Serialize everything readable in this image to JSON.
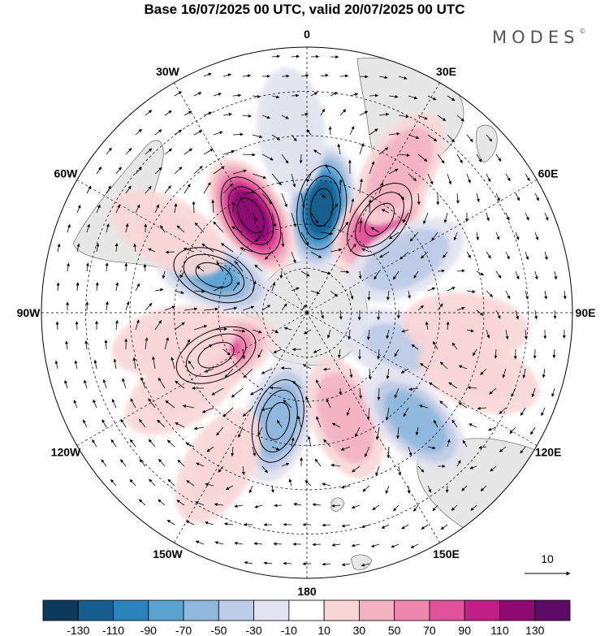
{
  "title": "Base 16/07/2025 00 UTC, valid 20/07/2025 00 UTC",
  "brand": "MODES",
  "brand_mark": "©",
  "longitude_labels": [
    "0",
    "30E",
    "60E",
    "90E",
    "120E",
    "150E",
    "180",
    "150W",
    "120W",
    "90W",
    "60W",
    "30W"
  ],
  "reference_vector": {
    "label": "10"
  },
  "colorbar": {
    "labels": [
      "-130",
      "-110",
      "-90",
      "-70",
      "-50",
      "-30",
      "-10",
      "10",
      "30",
      "50",
      "70",
      "90",
      "110",
      "130"
    ],
    "colors": [
      "#0d3a5c",
      "#155e8e",
      "#2a83bd",
      "#5aa2cf",
      "#8fb8dc",
      "#bccbe6",
      "#e2e2f0",
      "#ffffff",
      "#f8d6d6",
      "#f3b2c2",
      "#ee86ae",
      "#e0529a",
      "#c01f86",
      "#8e0c72",
      "#5c0a66"
    ]
  },
  "colors": {
    "land": "#e7e7e7",
    "coast": "#777777",
    "grid": "#000000"
  },
  "anomaly_features": [
    {
      "lat": -54,
      "lon": 8,
      "value": -115
    },
    {
      "lat": -52,
      "lon": -30,
      "value": 120
    },
    {
      "lat": -50,
      "lon": 38,
      "value": 80
    },
    {
      "lat": -32,
      "lon": 33,
      "value": 40
    },
    {
      "lat": -56,
      "lon": -68,
      "value": -70
    },
    {
      "lat": -52,
      "lon": 62,
      "value": -45
    },
    {
      "lat": -56,
      "lon": -115,
      "value": 70
    },
    {
      "lat": -44,
      "lon": -102,
      "value": 20
    },
    {
      "lat": -52,
      "lon": -165,
      "value": -65
    },
    {
      "lat": -52,
      "lon": 160,
      "value": 45
    },
    {
      "lat": -38,
      "lon": 135,
      "value": -55
    },
    {
      "lat": -56,
      "lon": 110,
      "value": -30
    },
    {
      "lat": -36,
      "lon": 95,
      "value": 20
    },
    {
      "lat": -28,
      "lon": 110,
      "value": 20
    },
    {
      "lat": -30,
      "lon": -150,
      "value": 20
    },
    {
      "lat": -36,
      "lon": -60,
      "value": 20
    },
    {
      "lat": -28,
      "lon": -5,
      "value": -15
    },
    {
      "lat": -40,
      "lon": -122,
      "value": 25
    }
  ]
}
